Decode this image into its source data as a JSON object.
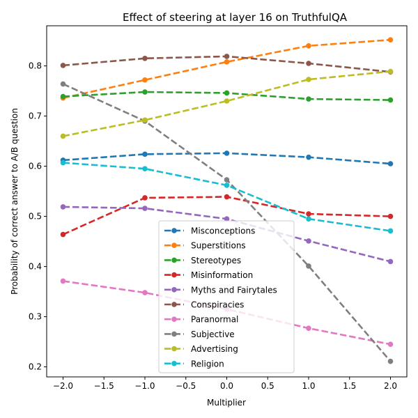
{
  "chart_data": {
    "type": "line",
    "title": "Effect of steering at layer 16 on TruthfulQA",
    "xlabel": "Multiplier",
    "ylabel": "Probability of correct answer to A/B question",
    "x": [
      -2,
      -1,
      0,
      1,
      2
    ],
    "xlim": [
      -2.2,
      2.2
    ],
    "ylim": [
      0.18,
      0.88
    ],
    "xticks": [
      -2.0,
      -1.5,
      -1.0,
      -0.5,
      0.0,
      0.5,
      1.0,
      1.5,
      2.0
    ],
    "xtick_labels": [
      "−2.0",
      "−1.5",
      "−1.0",
      "−0.5",
      "0.0",
      "0.5",
      "1.0",
      "1.5",
      "2.0"
    ],
    "yticks": [
      0.2,
      0.3,
      0.4,
      0.5,
      0.6,
      0.7,
      0.8
    ],
    "ytick_labels": [
      "0.2",
      "0.3",
      "0.4",
      "0.5",
      "0.6",
      "0.7",
      "0.8"
    ],
    "grid": false,
    "legend_position": "lower-center",
    "series": [
      {
        "name": "Misconceptions",
        "color": "#1f77b4",
        "values": [
          0.612,
          0.624,
          0.626,
          0.618,
          0.605
        ]
      },
      {
        "name": "Superstitions",
        "color": "#ff7f0e",
        "values": [
          0.736,
          0.772,
          0.808,
          0.84,
          0.852
        ]
      },
      {
        "name": "Stereotypes",
        "color": "#2ca02c",
        "values": [
          0.739,
          0.748,
          0.746,
          0.734,
          0.732
        ]
      },
      {
        "name": "Misinformation",
        "color": "#d62728",
        "values": [
          0.464,
          0.537,
          0.539,
          0.505,
          0.5
        ]
      },
      {
        "name": "Myths and Fairytales",
        "color": "#9467bd",
        "values": [
          0.519,
          0.516,
          0.495,
          0.451,
          0.41
        ]
      },
      {
        "name": "Conspiracies",
        "color": "#8c564b",
        "values": [
          0.801,
          0.815,
          0.819,
          0.805,
          0.788
        ]
      },
      {
        "name": "Paranormal",
        "color": "#e377c2",
        "values": [
          0.371,
          0.348,
          0.315,
          0.277,
          0.245
        ]
      },
      {
        "name": "Subjective",
        "color": "#7f7f7f",
        "values": [
          0.764,
          0.69,
          0.573,
          0.401,
          0.211
        ]
      },
      {
        "name": "Advertising",
        "color": "#bcbd22",
        "values": [
          0.66,
          0.692,
          0.73,
          0.773,
          0.789
        ]
      },
      {
        "name": "Religion",
        "color": "#17becf",
        "values": [
          0.607,
          0.595,
          0.562,
          0.495,
          0.471
        ]
      }
    ]
  }
}
